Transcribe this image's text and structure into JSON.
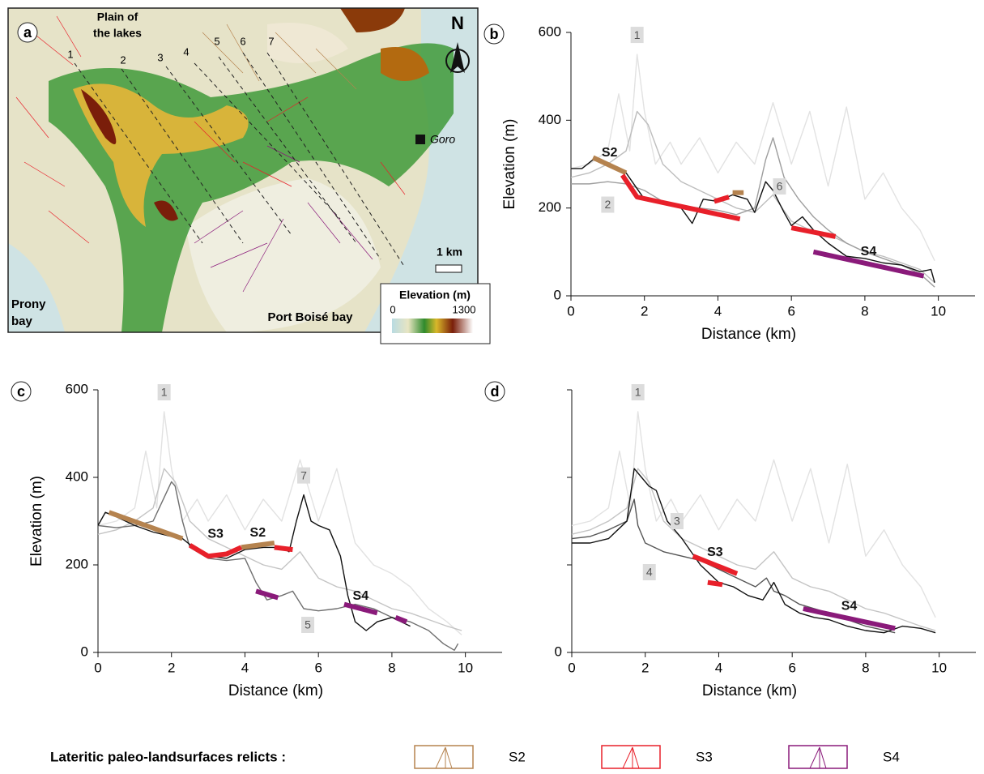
{
  "map": {
    "panel": "a",
    "title_lines": [
      "Plain of",
      "the lakes"
    ],
    "profiles": [
      "1",
      "2",
      "3",
      "4",
      "5",
      "6",
      "7"
    ],
    "north": "N",
    "town": "Goro",
    "scale": "1 km",
    "colorbar_title": "Elevation (m)",
    "colorbar_min": "0",
    "colorbar_max": "1300",
    "bay_west": [
      "Prony",
      "bay"
    ],
    "bay_south": "Port Boisé bay"
  },
  "chart_data": [
    {
      "type": "line",
      "panel": "b",
      "xlabel": "Distance (km)",
      "ylabel": "Elevation (m)",
      "xlim": [
        0,
        11
      ],
      "ylim": [
        0,
        600
      ],
      "xticks": [
        0,
        2,
        4,
        6,
        8,
        10
      ],
      "yticks": [
        0,
        200,
        400,
        600
      ],
      "series": [
        {
          "name": "1",
          "color": "#e2e2e2",
          "linestyle": "thin",
          "x": [
            0,
            0.5,
            1,
            1.3,
            1.6,
            1.8,
            2.0,
            2.3,
            2.7,
            3,
            3.5,
            4,
            4.5,
            5,
            5.5,
            6,
            6.5,
            7,
            7.5,
            8,
            8.5,
            9,
            9.5,
            9.9
          ],
          "values": [
            290,
            300,
            330,
            460,
            330,
            550,
            420,
            300,
            350,
            300,
            360,
            280,
            350,
            300,
            440,
            300,
            420,
            250,
            430,
            220,
            280,
            200,
            150,
            80
          ]
        },
        {
          "color": "#bdbdbd",
          "linestyle": "thin",
          "x": [
            0,
            0.5,
            1,
            1.5,
            1.8,
            2.1,
            2.5,
            3,
            3.5,
            4,
            4.5,
            5,
            5.5,
            6,
            6.5,
            7,
            7.5,
            8,
            8.5,
            9,
            9.5,
            9.9
          ],
          "values": [
            270,
            280,
            300,
            330,
            420,
            390,
            300,
            260,
            240,
            220,
            200,
            190,
            230,
            170,
            150,
            140,
            120,
            100,
            90,
            75,
            60,
            30
          ]
        },
        {
          "name": "6",
          "color": "#9e9e9e",
          "linestyle": "thin",
          "x": [
            0,
            0.5,
            1,
            1.5,
            2,
            2.5,
            3,
            3.5,
            4,
            4.5,
            5,
            5.3,
            5.5,
            5.8,
            6.2,
            6.6,
            7,
            7.5,
            8,
            8.5,
            9,
            9.5,
            9.9
          ],
          "values": [
            255,
            255,
            260,
            255,
            240,
            215,
            205,
            200,
            195,
            185,
            200,
            310,
            360,
            270,
            220,
            180,
            150,
            120,
            100,
            85,
            70,
            50,
            20
          ]
        },
        {
          "name": "2",
          "color": "#111111",
          "linestyle": "thin",
          "x": [
            0,
            0.3,
            0.6,
            1,
            1.5,
            2,
            2.5,
            3,
            3.3,
            3.6,
            4,
            4.4,
            4.8,
            5,
            5.3,
            5.5,
            5.8,
            6,
            6.3,
            6.6,
            7,
            7.5,
            8,
            8.5,
            9,
            9.5,
            9.8,
            9.9
          ],
          "values": [
            290,
            290,
            310,
            300,
            280,
            220,
            210,
            200,
            165,
            220,
            215,
            230,
            220,
            190,
            260,
            240,
            190,
            160,
            180,
            150,
            120,
            90,
            85,
            75,
            70,
            55,
            60,
            30
          ]
        },
        {
          "name": "S2",
          "color": "#b5834f",
          "linestyle": "thick",
          "x": [
            0.6,
            1.5
          ],
          "values": [
            315,
            280
          ]
        },
        {
          "color": "#b5834f",
          "linestyle": "thick",
          "x": [
            4.4,
            4.7
          ],
          "values": [
            235,
            235
          ]
        },
        {
          "color": "#e8202a",
          "linestyle": "thick",
          "x": [
            1.4,
            1.8,
            4.6
          ],
          "values": [
            275,
            225,
            175
          ]
        },
        {
          "color": "#e8202a",
          "linestyle": "thick",
          "x": [
            3.9,
            4.3
          ],
          "values": [
            215,
            225
          ]
        },
        {
          "color": "#e8202a",
          "linestyle": "thick",
          "x": [
            6.0,
            7.2
          ],
          "values": [
            155,
            135
          ]
        },
        {
          "name": "S4",
          "color": "#8a1a7a",
          "linestyle": "thick",
          "x": [
            6.6,
            9.6
          ],
          "values": [
            100,
            45
          ]
        }
      ]
    },
    {
      "type": "line",
      "panel": "c",
      "xlabel": "Distance (km)",
      "ylabel": "Elevation (m)",
      "xlim": [
        0,
        11
      ],
      "ylim": [
        0,
        600
      ],
      "xticks": [
        0,
        2,
        4,
        6,
        8,
        10
      ],
      "yticks": [
        0,
        200,
        400,
        600
      ],
      "series": [
        {
          "name": "1",
          "color": "#e2e2e2",
          "linestyle": "thin",
          "x": [
            0,
            0.5,
            1,
            1.3,
            1.6,
            1.8,
            2.0,
            2.3,
            2.7,
            3,
            3.5,
            4,
            4.5,
            5,
            5.5,
            6,
            6.5,
            7,
            7.5,
            8,
            8.5,
            9,
            9.5,
            9.9
          ],
          "values": [
            290,
            300,
            330,
            460,
            330,
            550,
            420,
            300,
            350,
            300,
            360,
            280,
            350,
            300,
            440,
            300,
            420,
            250,
            200,
            180,
            150,
            100,
            70,
            40
          ]
        },
        {
          "color": "#c4c4c4",
          "linestyle": "thin",
          "x": [
            0,
            0.5,
            1,
            1.5,
            1.8,
            2.1,
            2.5,
            3,
            3.5,
            4,
            4.5,
            5,
            5.5,
            6,
            6.5,
            7,
            7.5,
            8,
            8.5,
            9,
            9.5,
            9.9
          ],
          "values": [
            270,
            280,
            300,
            330,
            420,
            390,
            300,
            260,
            240,
            220,
            200,
            190,
            230,
            170,
            150,
            140,
            120,
            100,
            90,
            75,
            60,
            50
          ]
        },
        {
          "name": "5",
          "color": "#6f6f6f",
          "linestyle": "thin",
          "x": [
            0,
            0.5,
            1,
            1.5,
            2,
            2.1,
            2.3,
            2.5,
            3,
            3.5,
            4,
            4.3,
            4.6,
            5,
            5.3,
            5.6,
            6,
            6.5,
            7,
            7.5,
            8,
            8.5,
            9,
            9.4,
            9.7,
            9.8
          ],
          "values": [
            290,
            285,
            290,
            300,
            390,
            380,
            300,
            240,
            215,
            210,
            215,
            160,
            120,
            130,
            140,
            100,
            95,
            100,
            110,
            100,
            80,
            70,
            50,
            20,
            5,
            20
          ]
        },
        {
          "name": "7",
          "color": "#111111",
          "linestyle": "thin",
          "x": [
            0,
            0.2,
            0.5,
            1,
            1.5,
            2,
            2.3,
            2.6,
            3,
            3.5,
            4,
            4.5,
            5,
            5.2,
            5.4,
            5.6,
            5.8,
            6,
            6.3,
            6.6,
            6.8,
            7,
            7.3,
            7.6,
            8,
            8.5
          ],
          "values": [
            290,
            320,
            310,
            290,
            275,
            265,
            260,
            240,
            220,
            215,
            235,
            240,
            240,
            230,
            300,
            360,
            300,
            290,
            280,
            220,
            130,
            70,
            50,
            70,
            80,
            60
          ]
        },
        {
          "color": "#b5834f",
          "linestyle": "thick",
          "x": [
            0.3,
            2.3
          ],
          "values": [
            320,
            260
          ]
        },
        {
          "name": "S2",
          "color": "#b5834f",
          "linestyle": "thick",
          "x": [
            3.9,
            4.8
          ],
          "values": [
            240,
            250
          ]
        },
        {
          "name": "S3",
          "color": "#e8202a",
          "linestyle": "thick",
          "x": [
            2.5,
            3.0,
            3.5,
            3.9
          ],
          "values": [
            245,
            220,
            225,
            240
          ]
        },
        {
          "color": "#e8202a",
          "linestyle": "thick",
          "x": [
            4.8,
            5.3
          ],
          "values": [
            240,
            235
          ]
        },
        {
          "color": "#8a1a7a",
          "linestyle": "thick",
          "x": [
            4.3,
            4.9
          ],
          "values": [
            140,
            125
          ]
        },
        {
          "name": "S4",
          "color": "#8a1a7a",
          "linestyle": "thick",
          "x": [
            6.7,
            7.6
          ],
          "values": [
            110,
            90
          ]
        },
        {
          "color": "#8a1a7a",
          "linestyle": "thick",
          "x": [
            8.1,
            8.4
          ],
          "values": [
            80,
            70
          ]
        }
      ]
    },
    {
      "type": "line",
      "panel": "d",
      "xlabel": "Distance (km)",
      "xlim": [
        0,
        11
      ],
      "ylim": [
        0,
        600
      ],
      "xticks": [
        0,
        2,
        4,
        6,
        8,
        10
      ],
      "yticks": [
        0,
        {
          "value": 200,
          "label": null
        },
        {
          "value": 400,
          "label": null
        },
        {
          "value": 600,
          "label": null
        }
      ],
      "series": [
        {
          "name": "1",
          "color": "#e2e2e2",
          "linestyle": "thin",
          "x": [
            0,
            0.5,
            1,
            1.3,
            1.6,
            1.8,
            2.0,
            2.3,
            2.7,
            3,
            3.5,
            4,
            4.5,
            5,
            5.5,
            6,
            6.5,
            7,
            7.5,
            8,
            8.5,
            9,
            9.5,
            9.9
          ],
          "values": [
            290,
            300,
            330,
            460,
            330,
            550,
            420,
            300,
            350,
            300,
            360,
            280,
            350,
            300,
            440,
            300,
            420,
            250,
            430,
            220,
            280,
            200,
            150,
            80
          ]
        },
        {
          "color": "#c4c4c4",
          "linestyle": "thin",
          "x": [
            0,
            0.5,
            1,
            1.5,
            1.8,
            2.1,
            2.5,
            3,
            3.5,
            4,
            4.5,
            5,
            5.5,
            6,
            6.5,
            7,
            7.5,
            8,
            8.5,
            9,
            9.5,
            9.9
          ],
          "values": [
            270,
            280,
            300,
            330,
            420,
            390,
            300,
            260,
            240,
            220,
            200,
            190,
            230,
            170,
            150,
            140,
            120,
            100,
            90,
            75,
            60,
            50
          ]
        },
        {
          "name": "4",
          "color": "#555555",
          "linestyle": "thin",
          "x": [
            0,
            0.5,
            1,
            1.5,
            1.7,
            1.8,
            2,
            2.5,
            3,
            3.5,
            4,
            4.5,
            5,
            5.3,
            5.5,
            5.8,
            6.2,
            7,
            8,
            8.8
          ],
          "values": [
            260,
            265,
            280,
            300,
            350,
            290,
            250,
            230,
            220,
            210,
            190,
            170,
            150,
            170,
            140,
            130,
            110,
            90,
            60,
            45
          ]
        },
        {
          "name": "3",
          "color": "#111111",
          "linestyle": "thin",
          "x": [
            0,
            0.5,
            1,
            1.5,
            1.7,
            1.9,
            2.1,
            2.3,
            2.6,
            2.8,
            3,
            3.5,
            4,
            4.4,
            4.8,
            5.2,
            5.5,
            5.8,
            6.2,
            6.6,
            7,
            7.5,
            8,
            8.5,
            9,
            9.5,
            9.9
          ],
          "values": [
            250,
            250,
            260,
            300,
            420,
            400,
            380,
            370,
            300,
            280,
            260,
            200,
            160,
            150,
            130,
            120,
            160,
            110,
            90,
            80,
            75,
            60,
            50,
            45,
            60,
            55,
            45
          ]
        },
        {
          "name": "S3",
          "color": "#e8202a",
          "linestyle": "thick",
          "x": [
            3.3,
            4.5
          ],
          "values": [
            220,
            180
          ]
        },
        {
          "color": "#e8202a",
          "linestyle": "thick",
          "x": [
            3.7,
            4.1
          ],
          "values": [
            160,
            155
          ]
        },
        {
          "name": "S4",
          "color": "#8a1a7a",
          "linestyle": "thick",
          "x": [
            6.3,
            8.8
          ],
          "values": [
            100,
            55
          ]
        }
      ]
    }
  ],
  "legend": {
    "title": "Lateritic paleo-landsurfaces relicts :",
    "items": [
      {
        "label": "S2",
        "color": "#b5834f"
      },
      {
        "label": "S3",
        "color": "#e8202a"
      },
      {
        "label": "S4",
        "color": "#8a1a7a"
      }
    ]
  }
}
